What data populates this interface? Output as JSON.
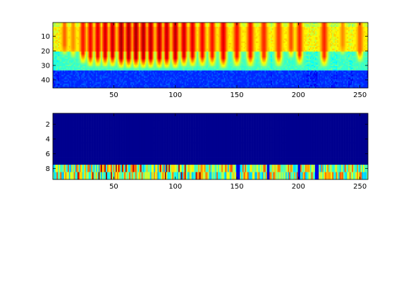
{
  "figure": {
    "background": "#ffffff"
  },
  "chart_data": [
    {
      "type": "heatmap",
      "title": "",
      "xlabel": "",
      "ylabel": "",
      "xlim": [
        0.5,
        256.5
      ],
      "ylim": [
        0.5,
        45.5
      ],
      "y_reversed": true,
      "n_cols": 256,
      "n_rows": 45,
      "x_ticks": [
        50,
        100,
        150,
        200,
        250
      ],
      "y_ticks": [
        10,
        20,
        30,
        40
      ],
      "colormap": "jet",
      "description_of_values": "spectrogram-like intensity (0=dark blue, 1=dark red)",
      "background_level": {
        "rows_1_20": 0.62,
        "rows_21_33": 0.42,
        "rows_34_45": 0.16
      },
      "stripes": [
        {
          "x": 10,
          "peak": 0.78,
          "width": 1.6,
          "depth": 22
        },
        {
          "x": 17,
          "peak": 0.74,
          "width": 1.6,
          "depth": 24
        },
        {
          "x": 25,
          "peak": 0.86,
          "width": 1.8,
          "depth": 28
        },
        {
          "x": 31,
          "peak": 0.88,
          "width": 1.8,
          "depth": 30
        },
        {
          "x": 37,
          "peak": 0.9,
          "width": 1.8,
          "depth": 30
        },
        {
          "x": 43,
          "peak": 0.92,
          "width": 1.8,
          "depth": 30
        },
        {
          "x": 49,
          "peak": 0.93,
          "width": 1.8,
          "depth": 30
        },
        {
          "x": 56,
          "peak": 0.96,
          "width": 1.9,
          "depth": 31
        },
        {
          "x": 62,
          "peak": 0.95,
          "width": 1.9,
          "depth": 31
        },
        {
          "x": 68,
          "peak": 0.96,
          "width": 1.9,
          "depth": 31
        },
        {
          "x": 74,
          "peak": 0.95,
          "width": 1.9,
          "depth": 31
        },
        {
          "x": 80,
          "peak": 0.94,
          "width": 1.9,
          "depth": 31
        },
        {
          "x": 87,
          "peak": 0.94,
          "width": 1.9,
          "depth": 31
        },
        {
          "x": 93,
          "peak": 0.93,
          "width": 1.9,
          "depth": 31
        },
        {
          "x": 100,
          "peak": 0.94,
          "width": 1.9,
          "depth": 31
        },
        {
          "x": 107,
          "peak": 0.92,
          "width": 1.9,
          "depth": 30
        },
        {
          "x": 114,
          "peak": 0.9,
          "width": 1.9,
          "depth": 30
        },
        {
          "x": 122,
          "peak": 0.88,
          "width": 1.9,
          "depth": 30
        },
        {
          "x": 130,
          "peak": 0.86,
          "width": 1.9,
          "depth": 30
        },
        {
          "x": 139,
          "peak": 0.9,
          "width": 2.0,
          "depth": 31
        },
        {
          "x": 150,
          "peak": 0.86,
          "width": 2.0,
          "depth": 30
        },
        {
          "x": 161,
          "peak": 0.86,
          "width": 2.0,
          "depth": 30
        },
        {
          "x": 172,
          "peak": 0.84,
          "width": 2.0,
          "depth": 30
        },
        {
          "x": 184,
          "peak": 0.82,
          "width": 2.0,
          "depth": 30
        },
        {
          "x": 194,
          "peak": 0.8,
          "width": 1.6,
          "depth": 24
        },
        {
          "x": 201,
          "peak": 0.84,
          "width": 1.8,
          "depth": 29
        },
        {
          "x": 221,
          "peak": 0.84,
          "width": 2.0,
          "depth": 30
        },
        {
          "x": 236,
          "peak": 0.74,
          "width": 1.6,
          "depth": 22
        },
        {
          "x": 250,
          "peak": 0.78,
          "width": 1.8,
          "depth": 27
        }
      ]
    },
    {
      "type": "heatmap",
      "title": "",
      "xlabel": "",
      "ylabel": "",
      "xlim": [
        0.5,
        256.5
      ],
      "ylim": [
        0.5,
        9.5
      ],
      "y_reversed": true,
      "n_cols": 256,
      "n_rows": 9,
      "x_ticks": [
        50,
        100,
        150,
        200,
        250
      ],
      "y_ticks": [
        2,
        4,
        6,
        8
      ],
      "colormap": "jet",
      "rows_1_7_value": 0.0,
      "rows_8_9": "per-column values mostly 0.3–0.8, with occasional peaks near 1.0 (dark red) between x≈20 and x≈120 and dark-blue gaps near x≈150, 175, 200, 215"
    }
  ]
}
